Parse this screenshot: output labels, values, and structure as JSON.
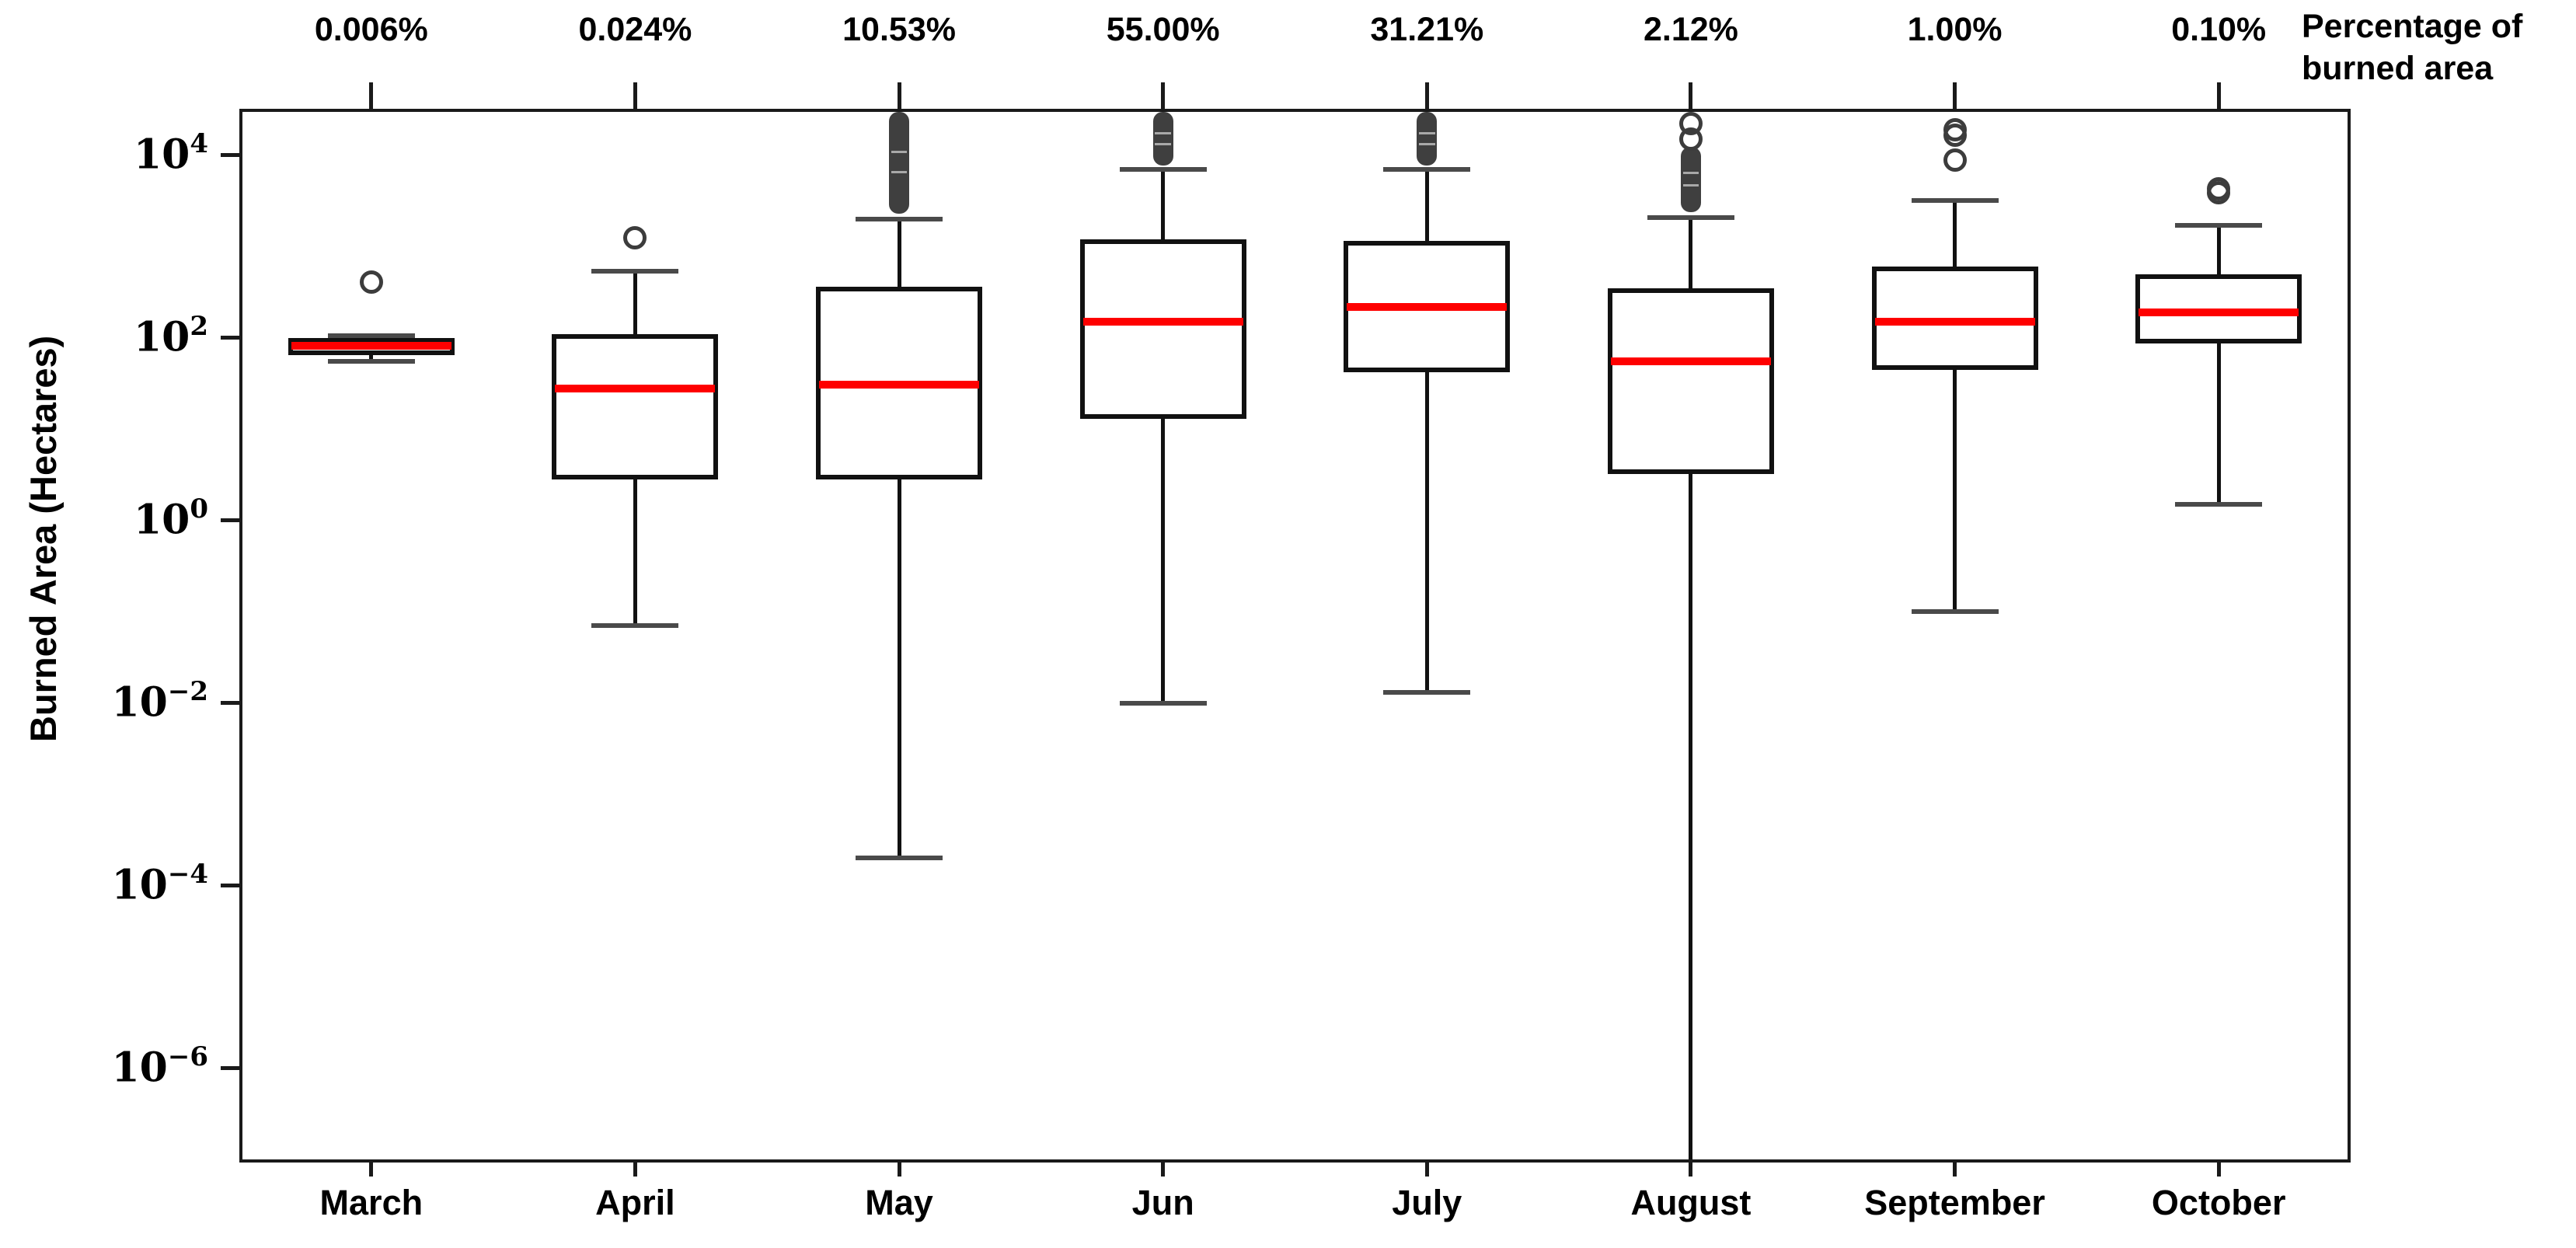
{
  "chart_data": {
    "type": "boxplot",
    "ylabel": "Burned Area (Hectares)",
    "legend_lines": [
      "Percentage of",
      "burned area"
    ],
    "y_scale": "log10",
    "y_tick_exponents": [
      4,
      2,
      0,
      -2,
      -4,
      -6
    ],
    "y_top_exponent": 4.51,
    "y_bottom_exponent": -7.0,
    "grid": false,
    "categories": [
      "March",
      "April",
      "May",
      "Jun",
      "July",
      "August",
      "September",
      "October"
    ],
    "percent_labels": [
      "0.006%",
      "0.024%",
      "10.53%",
      "55.00%",
      "31.21%",
      "2.12%",
      "1.00%",
      "0.10%"
    ],
    "colors": {
      "median": "#fe0000",
      "box_edge": "#111111",
      "whisker_cap": "#4a4a4a",
      "outlier": "#3c3c3c",
      "axis": "#1a1a1a"
    },
    "series": [
      {
        "month": "March",
        "whisker_low": 55,
        "q1": 65,
        "median": 82,
        "q3": 100,
        "whisker_high": 105,
        "outliers": [
          410
        ],
        "outlier_cluster": null,
        "whisker_low_clipped": false
      },
      {
        "month": "April",
        "whisker_low": 0.07,
        "q1": 2.8,
        "median": 28,
        "q3": 110,
        "whisker_high": 540,
        "outliers": [
          1250
        ],
        "outlier_cluster": null,
        "whisker_low_clipped": false
      },
      {
        "month": "May",
        "whisker_low": 0.0002,
        "q1": 2.8,
        "median": 31,
        "q3": 360,
        "whisker_high": 2000,
        "outliers": [],
        "outlier_cluster": [
          2300,
          30000
        ],
        "whisker_low_clipped": false
      },
      {
        "month": "Jun",
        "whisker_low": 0.01,
        "q1": 13,
        "median": 150,
        "q3": 1200,
        "whisker_high": 7000,
        "outliers": [],
        "outlier_cluster": [
          7800,
          30000
        ],
        "whisker_low_clipped": false
      },
      {
        "month": "July",
        "whisker_low": 0.013,
        "q1": 42,
        "median": 220,
        "q3": 1150,
        "whisker_high": 7000,
        "outliers": [],
        "outlier_cluster": [
          7800,
          30000
        ],
        "whisker_low_clipped": false
      },
      {
        "month": "August",
        "whisker_low": null,
        "q1": 3.2,
        "median": 55,
        "q3": 350,
        "whisker_high": 2100,
        "outliers": [
          22500,
          15000
        ],
        "outlier_cluster": [
          2400,
          12500
        ],
        "whisker_low_clipped": true
      },
      {
        "month": "September",
        "whisker_low": 0.1,
        "q1": 45,
        "median": 150,
        "q3": 600,
        "whisker_high": 3200,
        "outliers": [
          19000,
          16500,
          8800
        ],
        "outlier_cluster": null,
        "whisker_low_clipped": false
      },
      {
        "month": "October",
        "whisker_low": 1.5,
        "q1": 87,
        "median": 190,
        "q3": 500,
        "whisker_high": 1700,
        "outliers": [
          4300,
          3900
        ],
        "outlier_cluster": null,
        "whisker_low_clipped": false
      }
    ]
  }
}
